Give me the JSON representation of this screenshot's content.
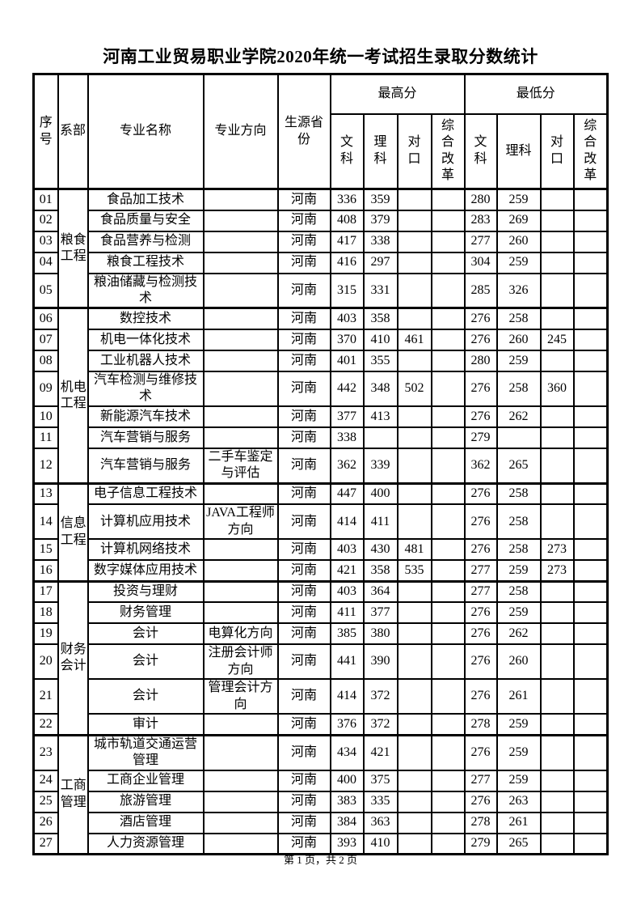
{
  "title": "河南工业贸易职业学院2020年统一考试招生录取分数统计",
  "footer": "第 1 页，共 2 页",
  "table": {
    "headers": {
      "no": "序号",
      "dept": "系部",
      "major": "专业名称",
      "direction": "专业方向",
      "province": "生源省份",
      "max_group": "最高分",
      "min_group": "最低分",
      "sub": [
        "文科",
        "理科",
        "对口",
        "综合改革",
        "文科",
        "理科",
        "对口",
        "综合改革"
      ]
    },
    "departments": [
      {
        "label": "粮食工程",
        "start": 0,
        "rows": 5
      },
      {
        "label": "机电工程",
        "start": 5,
        "rows": 7
      },
      {
        "label": "信息工程",
        "start": 12,
        "rows": 4
      },
      {
        "label": "财务会计",
        "start": 16,
        "rows": 6
      },
      {
        "label": "工商管理",
        "start": 22,
        "rows": 5
      }
    ],
    "rows": [
      {
        "no": "01",
        "major": "食品加工技术",
        "direction": "",
        "province": "河南",
        "scores": [
          "336",
          "359",
          "",
          "",
          "280",
          "259",
          "",
          ""
        ]
      },
      {
        "no": "02",
        "major": "食品质量与安全",
        "direction": "",
        "province": "河南",
        "scores": [
          "408",
          "379",
          "",
          "",
          "283",
          "269",
          "",
          ""
        ]
      },
      {
        "no": "03",
        "major": "食品营养与检测",
        "direction": "",
        "province": "河南",
        "scores": [
          "417",
          "338",
          "",
          "",
          "277",
          "260",
          "",
          ""
        ]
      },
      {
        "no": "04",
        "major": "粮食工程技术",
        "direction": "",
        "province": "河南",
        "scores": [
          "416",
          "297",
          "",
          "",
          "304",
          "259",
          "",
          ""
        ]
      },
      {
        "no": "05",
        "major": "粮油储藏与检测技术",
        "direction": "",
        "province": "河南",
        "scores": [
          "315",
          "331",
          "",
          "",
          "285",
          "326",
          "",
          ""
        ]
      },
      {
        "no": "06",
        "major": "数控技术",
        "direction": "",
        "province": "河南",
        "scores": [
          "403",
          "358",
          "",
          "",
          "276",
          "258",
          "",
          ""
        ]
      },
      {
        "no": "07",
        "major": "机电一体化技术",
        "direction": "",
        "province": "河南",
        "scores": [
          "370",
          "410",
          "461",
          "",
          "276",
          "260",
          "245",
          ""
        ]
      },
      {
        "no": "08",
        "major": "工业机器人技术",
        "direction": "",
        "province": "河南",
        "scores": [
          "401",
          "355",
          "",
          "",
          "280",
          "259",
          "",
          ""
        ]
      },
      {
        "no": "09",
        "major": "汽车检测与维修技术",
        "direction": "",
        "province": "河南",
        "scores": [
          "442",
          "348",
          "502",
          "",
          "276",
          "258",
          "360",
          ""
        ]
      },
      {
        "no": "10",
        "major": "新能源汽车技术",
        "direction": "",
        "province": "河南",
        "scores": [
          "377",
          "413",
          "",
          "",
          "276",
          "262",
          "",
          ""
        ]
      },
      {
        "no": "11",
        "major": "汽车营销与服务",
        "direction": "",
        "province": "河南",
        "scores": [
          "338",
          "",
          "",
          "",
          "279",
          "",
          "",
          ""
        ]
      },
      {
        "no": "12",
        "major": "汽车营销与服务",
        "direction": "二手车鉴定与评估",
        "province": "河南",
        "scores": [
          "362",
          "339",
          "",
          "",
          "362",
          "265",
          "",
          ""
        ]
      },
      {
        "no": "13",
        "major": "电子信息工程技术",
        "direction": "",
        "province": "河南",
        "scores": [
          "447",
          "400",
          "",
          "",
          "276",
          "258",
          "",
          ""
        ]
      },
      {
        "no": "14",
        "major": "计算机应用技术",
        "direction": "JAVA工程师方向",
        "province": "河南",
        "scores": [
          "414",
          "411",
          "",
          "",
          "276",
          "258",
          "",
          ""
        ]
      },
      {
        "no": "15",
        "major": "计算机网络技术",
        "direction": "",
        "province": "河南",
        "scores": [
          "403",
          "430",
          "481",
          "",
          "276",
          "258",
          "273",
          ""
        ]
      },
      {
        "no": "16",
        "major": "数字媒体应用技术",
        "direction": "",
        "province": "河南",
        "scores": [
          "421",
          "358",
          "535",
          "",
          "277",
          "259",
          "273",
          ""
        ]
      },
      {
        "no": "17",
        "major": "投资与理财",
        "direction": "",
        "province": "河南",
        "scores": [
          "403",
          "364",
          "",
          "",
          "277",
          "258",
          "",
          ""
        ]
      },
      {
        "no": "18",
        "major": "财务管理",
        "direction": "",
        "province": "河南",
        "scores": [
          "411",
          "377",
          "",
          "",
          "276",
          "259",
          "",
          ""
        ]
      },
      {
        "no": "19",
        "major": "会计",
        "direction": "电算化方向",
        "province": "河南",
        "scores": [
          "385",
          "380",
          "",
          "",
          "276",
          "262",
          "",
          ""
        ]
      },
      {
        "no": "20",
        "major": "会计",
        "direction": "注册会计师方向",
        "province": "河南",
        "scores": [
          "441",
          "390",
          "",
          "",
          "276",
          "260",
          "",
          ""
        ]
      },
      {
        "no": "21",
        "major": "会计",
        "direction": "管理会计方向",
        "province": "河南",
        "scores": [
          "414",
          "372",
          "",
          "",
          "276",
          "261",
          "",
          ""
        ]
      },
      {
        "no": "22",
        "major": "审计",
        "direction": "",
        "province": "河南",
        "scores": [
          "376",
          "372",
          "",
          "",
          "278",
          "259",
          "",
          ""
        ]
      },
      {
        "no": "23",
        "major": "城市轨道交通运营管理",
        "direction": "",
        "province": "河南",
        "scores": [
          "434",
          "421",
          "",
          "",
          "276",
          "259",
          "",
          ""
        ]
      },
      {
        "no": "24",
        "major": "工商企业管理",
        "direction": "",
        "province": "河南",
        "scores": [
          "400",
          "375",
          "",
          "",
          "277",
          "259",
          "",
          ""
        ]
      },
      {
        "no": "25",
        "major": "旅游管理",
        "direction": "",
        "province": "河南",
        "scores": [
          "383",
          "335",
          "",
          "",
          "276",
          "263",
          "",
          ""
        ]
      },
      {
        "no": "26",
        "major": "酒店管理",
        "direction": "",
        "province": "河南",
        "scores": [
          "384",
          "363",
          "",
          "",
          "278",
          "261",
          "",
          ""
        ]
      },
      {
        "no": "27",
        "major": "人力资源管理",
        "direction": "",
        "province": "河南",
        "scores": [
          "393",
          "410",
          "",
          "",
          "279",
          "265",
          "",
          ""
        ]
      }
    ]
  }
}
